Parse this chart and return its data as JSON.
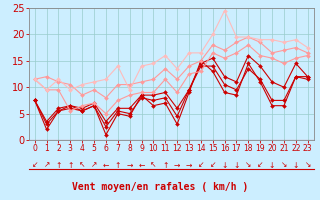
{
  "xlabel": "Vent moyen/en rafales ( km/h )",
  "xlim": [
    -0.5,
    23.5
  ],
  "ylim": [
    0,
    25
  ],
  "xticks": [
    0,
    1,
    2,
    3,
    4,
    5,
    6,
    7,
    8,
    9,
    10,
    11,
    12,
    13,
    14,
    15,
    16,
    17,
    18,
    19,
    20,
    21,
    22,
    23
  ],
  "yticks": [
    0,
    5,
    10,
    15,
    20,
    25
  ],
  "bg_color": "#cceeff",
  "grid_color": "#99cccc",
  "series": [
    {
      "x": [
        0,
        1,
        2,
        3,
        4,
        5,
        6,
        7,
        8,
        9,
        10,
        11,
        12,
        13,
        14,
        15,
        16,
        17,
        18,
        19,
        20,
        21,
        22,
        23
      ],
      "y": [
        7.5,
        2.0,
        5.5,
        6.5,
        5.5,
        6.5,
        1.0,
        5.0,
        4.5,
        8.5,
        6.5,
        7.0,
        3.0,
        9.0,
        15.0,
        13.0,
        9.0,
        8.5,
        14.5,
        11.0,
        6.5,
        6.5,
        12.0,
        12.0
      ],
      "color": "#cc0000",
      "lw": 0.8,
      "marker": "D",
      "ms": 2.0
    },
    {
      "x": [
        0,
        1,
        2,
        3,
        4,
        5,
        6,
        7,
        8,
        9,
        10,
        11,
        12,
        13,
        14,
        15,
        16,
        17,
        18,
        19,
        20,
        21,
        22,
        23
      ],
      "y": [
        7.5,
        3.0,
        5.5,
        6.0,
        5.5,
        6.5,
        2.5,
        5.5,
        5.0,
        8.0,
        7.5,
        8.0,
        4.5,
        9.5,
        14.0,
        14.0,
        10.5,
        9.5,
        13.5,
        11.5,
        7.5,
        7.5,
        12.0,
        11.5
      ],
      "color": "#cc0000",
      "lw": 0.8,
      "marker": "D",
      "ms": 2.0
    },
    {
      "x": [
        0,
        1,
        2,
        3,
        4,
        5,
        6,
        7,
        8,
        9,
        10,
        11,
        12,
        13,
        14,
        15,
        16,
        17,
        18,
        19,
        20,
        21,
        22,
        23
      ],
      "y": [
        7.5,
        3.5,
        6.0,
        6.5,
        6.0,
        7.0,
        3.5,
        6.0,
        6.0,
        8.5,
        8.5,
        9.0,
        6.0,
        9.5,
        14.5,
        15.5,
        12.0,
        11.0,
        16.0,
        14.0,
        11.0,
        10.0,
        14.5,
        12.0
      ],
      "color": "#cc0000",
      "lw": 0.8,
      "marker": "D",
      "ms": 2.0
    },
    {
      "x": [
        0,
        1,
        2,
        3,
        4,
        5,
        6,
        7,
        8,
        9,
        10,
        11,
        12,
        13,
        14,
        15,
        16,
        17,
        18,
        19,
        20,
        21,
        22,
        23
      ],
      "y": [
        11.5,
        9.5,
        9.5,
        5.5,
        6.5,
        7.0,
        5.0,
        7.5,
        8.5,
        9.0,
        9.0,
        11.5,
        9.0,
        12.5,
        13.0,
        16.5,
        15.5,
        16.5,
        18.0,
        16.0,
        15.5,
        14.5,
        15.5,
        16.0
      ],
      "color": "#ff9999",
      "lw": 0.8,
      "marker": "D",
      "ms": 2.0
    },
    {
      "x": [
        0,
        1,
        2,
        3,
        4,
        5,
        6,
        7,
        8,
        9,
        10,
        11,
        12,
        13,
        14,
        15,
        16,
        17,
        18,
        19,
        20,
        21,
        22,
        23
      ],
      "y": [
        11.5,
        12.0,
        11.0,
        10.5,
        8.5,
        9.5,
        8.0,
        10.5,
        10.5,
        11.0,
        11.5,
        13.5,
        11.5,
        14.0,
        15.0,
        18.0,
        17.0,
        18.5,
        19.5,
        18.5,
        16.5,
        17.0,
        17.5,
        16.5
      ],
      "color": "#ff9999",
      "lw": 0.8,
      "marker": "D",
      "ms": 2.0
    },
    {
      "x": [
        0,
        1,
        2,
        3,
        4,
        5,
        6,
        7,
        8,
        9,
        10,
        11,
        12,
        13,
        14,
        15,
        16,
        17,
        18,
        19,
        20,
        21,
        22,
        23
      ],
      "y": [
        11.5,
        9.5,
        11.5,
        9.5,
        10.5,
        11.0,
        11.5,
        14.0,
        9.5,
        14.0,
        14.5,
        16.0,
        13.5,
        16.5,
        16.5,
        20.0,
        24.5,
        19.5,
        19.5,
        19.0,
        19.0,
        18.5,
        19.0,
        17.5
      ],
      "color": "#ffbbbb",
      "lw": 0.8,
      "marker": "D",
      "ms": 2.0
    }
  ],
  "wind_arrows": [
    "↙",
    "↗",
    "↑",
    "↑",
    "↖",
    "↗",
    "←",
    "↑",
    "→",
    "←",
    "↖",
    "↑",
    "→",
    "→",
    "↙",
    "↙",
    "↓",
    "↓",
    "↘",
    "↙",
    "↓",
    "↘",
    "↓",
    "↘"
  ],
  "tick_color": "#cc0000",
  "axis_color": "#888888",
  "font_color": "#cc0000",
  "xlabel_fontsize": 7,
  "ytick_fontsize": 7,
  "xtick_fontsize": 5.5
}
